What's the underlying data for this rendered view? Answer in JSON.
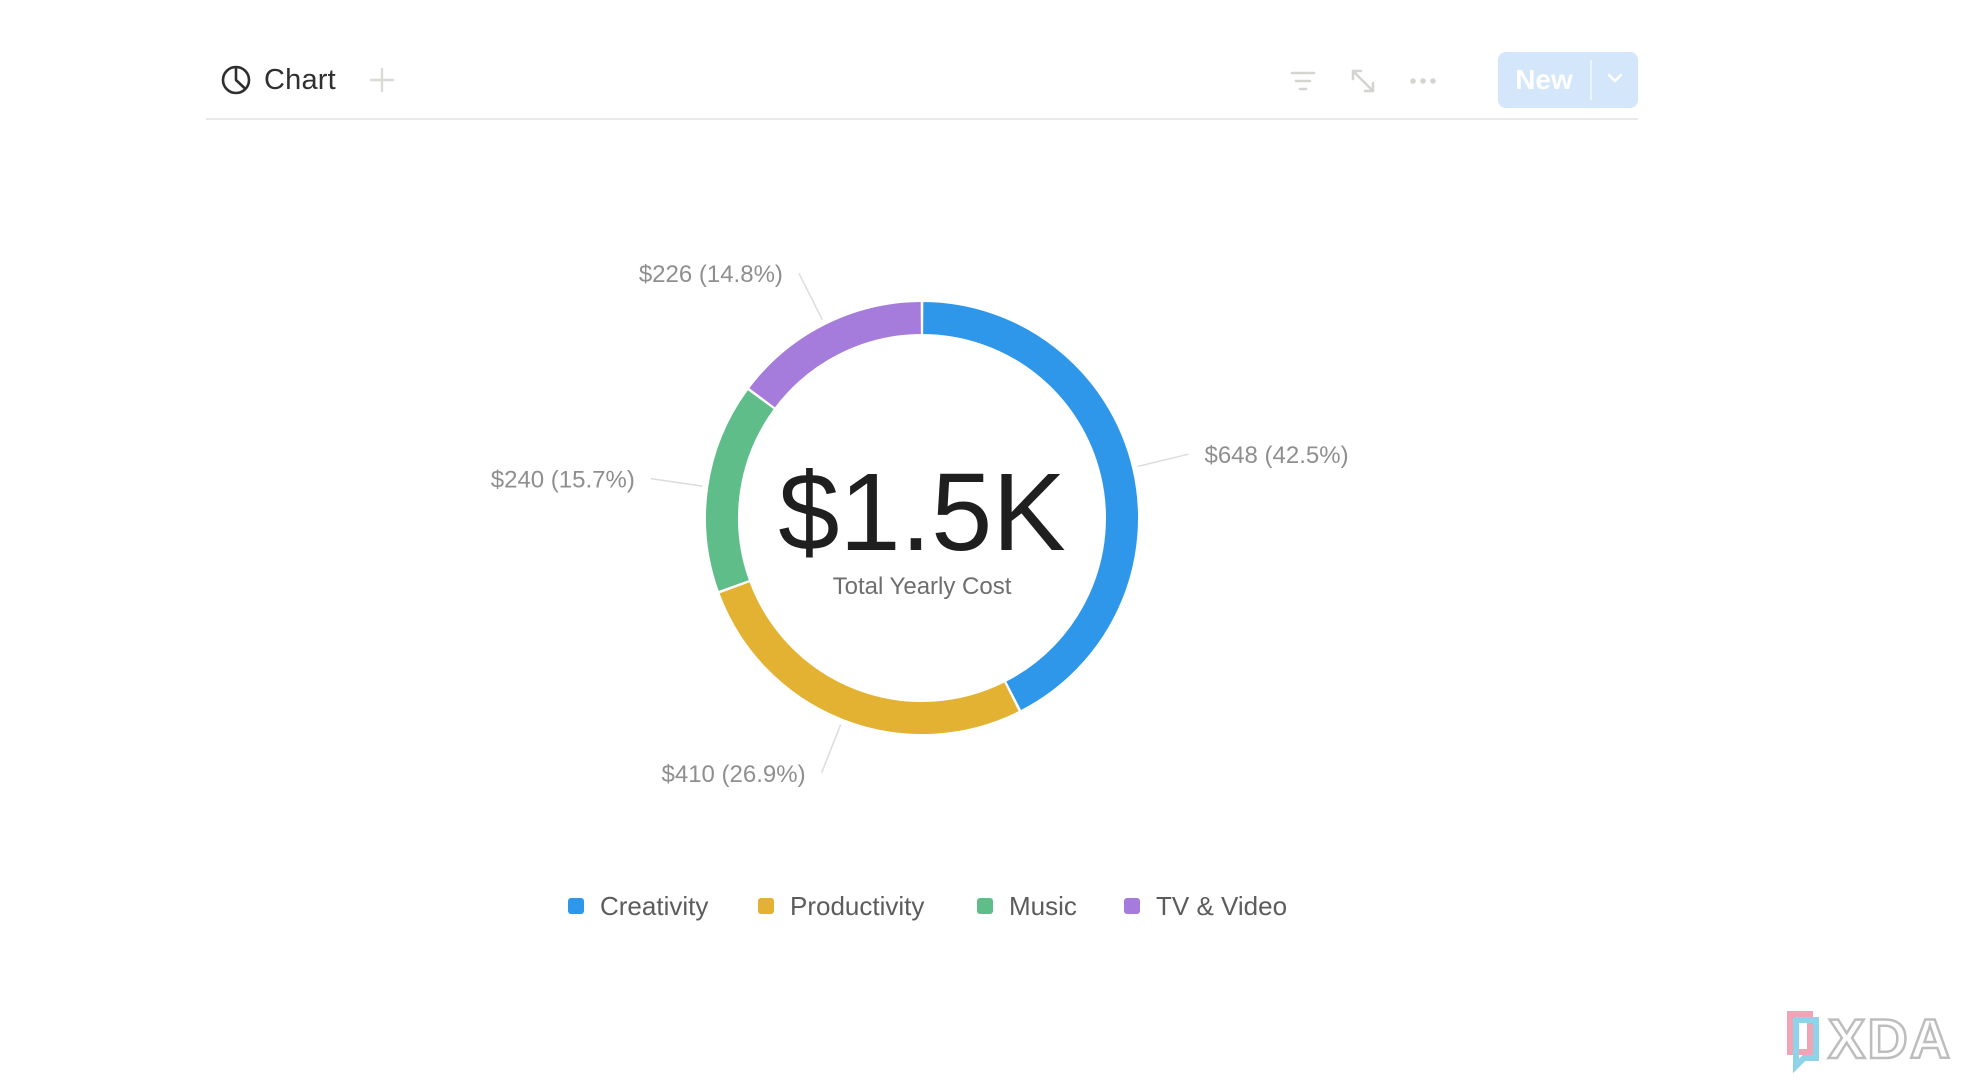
{
  "header": {
    "view_label": "Chart",
    "view_icon": "pie-chart-icon",
    "add_view_icon": "plus-icon",
    "toolbar": {
      "filter_icon": "filter-icon",
      "expand_icon": "expand-icon",
      "more_icon": "more-icon"
    },
    "new_button_label": "New",
    "new_dropdown_icon": "chevron-down-icon"
  },
  "chart_data": {
    "type": "donut",
    "center_value": "$1.5K",
    "center_label": "Total Yearly Cost",
    "slices": [
      {
        "name": "Creativity",
        "value": 648,
        "percent": 42.5,
        "label": "$648 (42.5%)",
        "color": "#2e97ea"
      },
      {
        "name": "Productivity",
        "value": 410,
        "percent": 26.9,
        "label": "$410 (26.9%)",
        "color": "#e4b232"
      },
      {
        "name": "Music",
        "value": 240,
        "percent": 15.7,
        "label": "$240 (15.7%)",
        "color": "#5fbd8a"
      },
      {
        "name": "TV & Video",
        "value": 226,
        "percent": 14.8,
        "label": "$226 (14.8%)",
        "color": "#a57cdb"
      }
    ],
    "legend_position": "bottom"
  },
  "watermark": {
    "text": "XDA"
  },
  "colors": {
    "accent": "#2e97ea",
    "new_button_bg": "#d3e6fa"
  }
}
